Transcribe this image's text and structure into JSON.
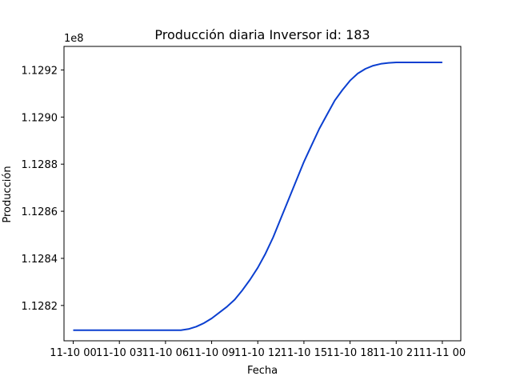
{
  "chart_data": {
    "type": "line",
    "title": "Producción diaria Inversor id: 183",
    "xlabel": "Fecha",
    "ylabel": "Producción",
    "y_multiplier_label": "1e8",
    "x_ticks": [
      "11-10 00",
      "11-10 03",
      "11-10 06",
      "11-10 09",
      "11-10 12",
      "11-10 15",
      "11-10 18",
      "11-10 21",
      "11-11 00"
    ],
    "y_ticks": [
      "1.1282",
      "1.1284",
      "1.1286",
      "1.1288",
      "1.1290",
      "1.1292"
    ],
    "xlim": [
      -0.6,
      25.2
    ],
    "ylim": [
      1.12805,
      1.1293
    ],
    "grid": false,
    "line_color": "#0b3fd0",
    "series": [
      {
        "x": [
          0,
          0.5,
          1,
          1.5,
          2,
          2.5,
          3,
          3.5,
          4,
          4.5,
          5,
          5.5,
          6,
          6.5,
          7,
          7.5,
          8,
          8.5,
          9,
          9.5,
          10,
          10.5,
          11,
          11.5,
          12,
          12.5,
          13,
          13.5,
          14,
          14.5,
          15,
          15.5,
          16,
          16.5,
          17,
          17.5,
          18,
          18.5,
          19,
          19.5,
          20,
          20.5,
          21,
          21.5,
          22,
          22.5,
          23,
          23.5,
          24
        ],
        "y": [
          1.128095,
          1.128095,
          1.128095,
          1.128095,
          1.128095,
          1.128095,
          1.128095,
          1.128095,
          1.128095,
          1.128095,
          1.128095,
          1.128095,
          1.128095,
          1.128095,
          1.128095,
          1.1281,
          1.12811,
          1.128125,
          1.128145,
          1.12817,
          1.128195,
          1.128225,
          1.128265,
          1.12831,
          1.12836,
          1.12842,
          1.12849,
          1.12857,
          1.12865,
          1.12873,
          1.12881,
          1.12888,
          1.12895,
          1.12901,
          1.12907,
          1.129115,
          1.129155,
          1.129185,
          1.129205,
          1.129218,
          1.129226,
          1.12923,
          1.129232,
          1.129232,
          1.129232,
          1.129232,
          1.129232,
          1.129232,
          1.129232
        ]
      }
    ]
  }
}
